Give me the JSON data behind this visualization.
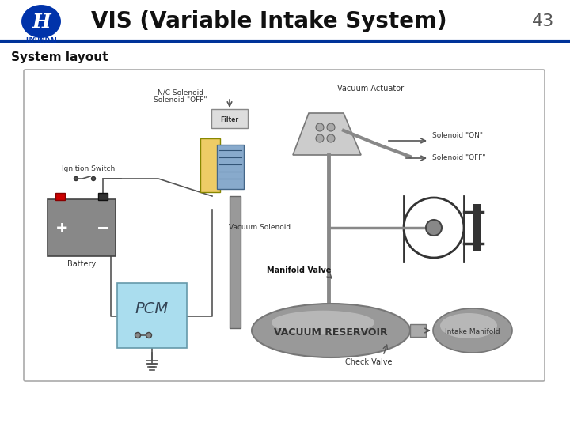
{
  "title": "VIS (Variable Intake System)",
  "page_number": "43",
  "subtitle": "System layout",
  "bg_color": "#ffffff",
  "header_line_color": "#003399",
  "hyundai_blue": "#0033AA",
  "labels": {
    "nc_solenoid_1": "N/C Solenoid",
    "nc_solenoid_2": "Solenoid \"OFF\"",
    "vacuum_actuator": "Vacuum Actuator",
    "solenoid_on": "Solenoid \"ON\"",
    "solenoid_off": "Solenoid \"OFF\"",
    "ignition_switch": "Ignition Switch",
    "vacuum_solenoid": "Vacuum Solenoid",
    "manifold_valve": "Manifold Valve",
    "battery": "Battery",
    "pcm": "PCM",
    "vacuum_reservoir": "VACUUM RESERVOIR",
    "intake_manifold": "Intake Manifold",
    "check_valve": "Check Valve",
    "filter": "Filter"
  }
}
